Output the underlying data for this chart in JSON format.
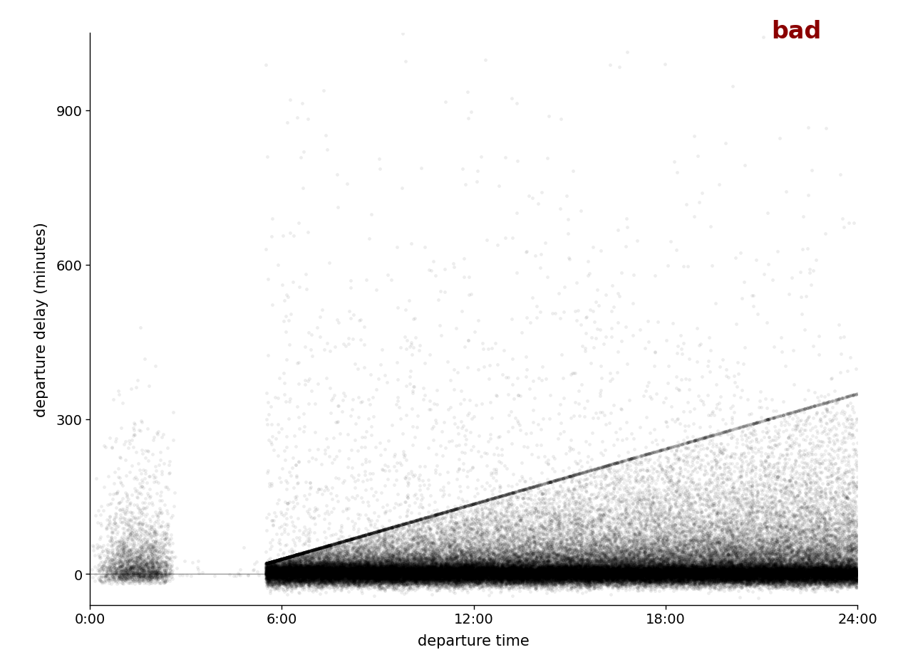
{
  "bad_label": "bad",
  "bad_label_color": "#8B0000",
  "xlabel": "departure time",
  "ylabel": "departure delay (minutes)",
  "xlim": [
    0,
    1440
  ],
  "ylim": [
    -60,
    1050
  ],
  "yticks": [
    0,
    300,
    600,
    900
  ],
  "xticks": [
    0,
    360,
    720,
    1080,
    1440
  ],
  "xticklabels": [
    "0:00",
    "6:00",
    "12:00",
    "18:00",
    "24:00"
  ],
  "dot_color": "#000000",
  "dot_alpha": 0.07,
  "dot_size": 12,
  "hline_y": 0,
  "hline_color": "#999999",
  "hline_lw": 1.0,
  "background_color": "#ffffff",
  "spine_color": "#000000",
  "red_bar_color": "#8B0000",
  "seed": 42,
  "n_early": 2500,
  "n_main": 95000,
  "t_early_max": 160,
  "t_main_start": 330
}
